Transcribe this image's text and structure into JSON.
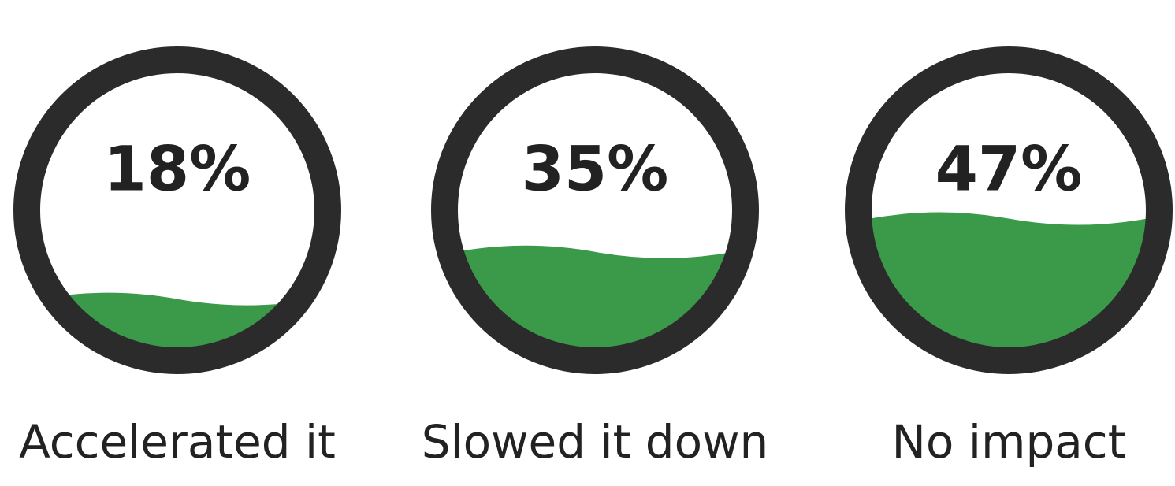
{
  "chart_data": {
    "type": "fill",
    "categories": [
      "Accelerated it",
      "Slowed it down",
      "No impact"
    ],
    "values": [
      18,
      35,
      47
    ],
    "value_labels": [
      "18%",
      "35%",
      "47%"
    ],
    "color": "#3a9a4a"
  }
}
